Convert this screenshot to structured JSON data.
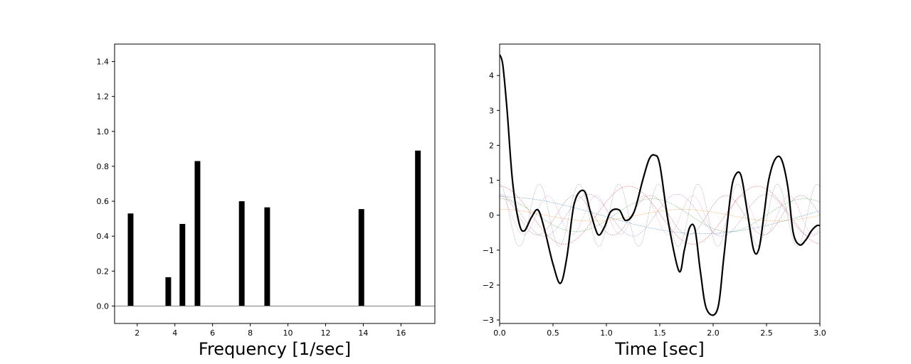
{
  "chart_data": [
    {
      "type": "bar",
      "xlabel": "Frequency [1/sec]",
      "ylabel": "",
      "xlim": [
        0.8,
        17.8
      ],
      "ylim": [
        -0.1,
        1.5
      ],
      "xticks": [
        2,
        4,
        6,
        8,
        10,
        12,
        14,
        16
      ],
      "yticks": [
        0.0,
        0.2,
        0.4,
        0.6,
        0.8,
        1.0,
        1.2,
        1.4
      ],
      "bar_width": 0.3,
      "bar_color": "#000000",
      "baseline_color": "#808080",
      "x": [
        1.65,
        3.65,
        4.4,
        5.2,
        7.55,
        8.9,
        13.9,
        16.9
      ],
      "values": [
        0.53,
        0.165,
        0.47,
        0.83,
        0.6,
        0.565,
        0.555,
        0.89
      ],
      "grid": false
    },
    {
      "type": "line",
      "xlabel": "Time [sec]",
      "ylabel": "",
      "xlim": [
        0.0,
        3.0
      ],
      "ylim": [
        -3.1,
        4.9
      ],
      "xticks": [
        0.0,
        0.5,
        1.0,
        1.5,
        2.0,
        2.5,
        3.0
      ],
      "yticks": [
        -3,
        -2,
        -1,
        0,
        1,
        2,
        3,
        4
      ],
      "sum_color": "#000000",
      "component_colors": [
        "#1f77b4",
        "#ff7f0e",
        "#2ca02c",
        "#d62728",
        "#9467bd",
        "#8c564b",
        "#e377c2",
        "#7f7f7f"
      ],
      "components": [
        {
          "freq": 1.65,
          "amp": 0.53
        },
        {
          "freq": 3.65,
          "amp": 0.165
        },
        {
          "freq": 4.4,
          "amp": 0.47
        },
        {
          "freq": 5.2,
          "amp": 0.83
        },
        {
          "freq": 7.55,
          "amp": 0.6
        },
        {
          "freq": 8.9,
          "amp": 0.565
        },
        {
          "freq": 13.9,
          "amp": 0.555
        },
        {
          "freq": 16.9,
          "amp": 0.89
        }
      ],
      "sum_series": {
        "t": [
          0.0,
          0.03,
          0.07,
          0.12,
          0.18,
          0.23,
          0.3,
          0.36,
          0.42,
          0.5,
          0.57,
          0.63,
          0.7,
          0.79,
          0.85,
          0.92,
          0.98,
          1.04,
          1.12,
          1.18,
          1.26,
          1.34,
          1.4,
          1.45,
          1.5,
          1.58,
          1.68,
          1.73,
          1.78,
          1.83,
          1.88,
          1.94,
          2.04,
          2.1,
          2.16,
          2.2,
          2.26,
          2.32,
          2.38,
          2.43,
          2.48,
          2.52,
          2.58,
          2.64,
          2.7,
          2.75,
          2.81,
          2.87,
          2.92,
          2.97,
          3.0
        ],
        "y": [
          4.6,
          4.3,
          3.0,
          1.0,
          -0.2,
          -0.45,
          -0.05,
          0.15,
          -0.4,
          -1.4,
          -1.95,
          -1.2,
          0.35,
          0.7,
          0.1,
          -0.55,
          -0.35,
          0.1,
          0.15,
          -0.15,
          0.1,
          1.0,
          1.6,
          1.72,
          1.45,
          -0.2,
          -1.6,
          -1.0,
          -0.35,
          -0.4,
          -1.6,
          -2.7,
          -2.7,
          -1.2,
          0.5,
          1.1,
          1.15,
          0.1,
          -1.0,
          -0.95,
          0.1,
          1.0,
          1.6,
          1.6,
          0.8,
          -0.5,
          -0.85,
          -0.7,
          -0.45,
          -0.3,
          -0.3
        ]
      },
      "grid": false
    }
  ]
}
